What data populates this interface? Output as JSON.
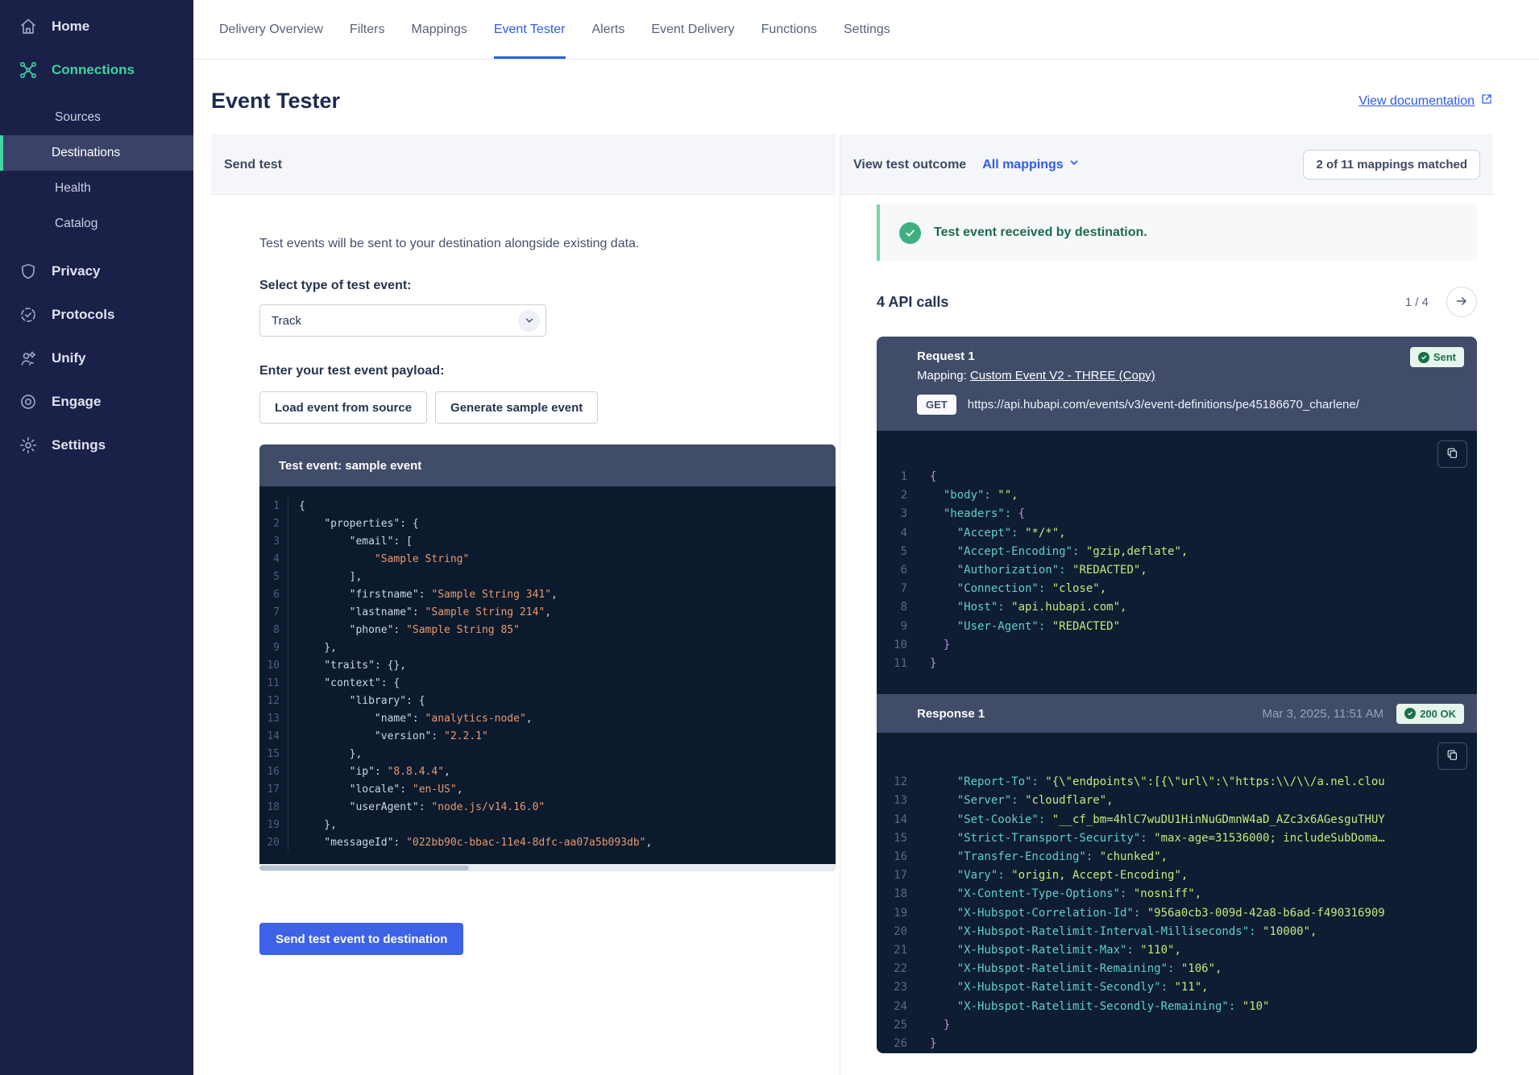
{
  "sidebar": {
    "items": [
      {
        "label": "Home",
        "icon": "home"
      },
      {
        "label": "Connections",
        "icon": "connections",
        "accent": true
      },
      {
        "label": "Sources",
        "sub": true
      },
      {
        "label": "Destinations",
        "sub": true,
        "active": true
      },
      {
        "label": "Health",
        "sub": true
      },
      {
        "label": "Catalog",
        "sub": true
      },
      {
        "label": "Privacy",
        "icon": "privacy"
      },
      {
        "label": "Protocols",
        "icon": "protocols"
      },
      {
        "label": "Unify",
        "icon": "unify"
      },
      {
        "label": "Engage",
        "icon": "engage"
      },
      {
        "label": "Settings",
        "icon": "settings"
      }
    ]
  },
  "tabs": {
    "labels": [
      "Delivery Overview",
      "Filters",
      "Mappings",
      "Event Tester",
      "Alerts",
      "Event Delivery",
      "Functions",
      "Settings"
    ],
    "active_index": 3
  },
  "page": {
    "title": "Event Tester",
    "doc_link": "View documentation"
  },
  "send_test": {
    "panel_title": "Send test",
    "description": "Test events will be sent to your destination alongside existing data.",
    "select_label": "Select type of test event:",
    "select_value": "Track",
    "payload_label": "Enter your test event payload:",
    "load_button": "Load event from source",
    "generate_button": "Generate sample event",
    "editor_title": "Test event: sample event",
    "send_button": "Send test event to destination",
    "editor_lines": [
      {
        "n": 1,
        "s": [
          [
            "t",
            "{"
          ]
        ]
      },
      {
        "n": 2,
        "s": [
          [
            "t",
            "    \"properties\": {"
          ]
        ]
      },
      {
        "n": 3,
        "s": [
          [
            "t",
            "        \"email\": ["
          ]
        ]
      },
      {
        "n": 4,
        "s": [
          [
            "t",
            "            "
          ],
          [
            "v",
            "\"Sample String\""
          ]
        ]
      },
      {
        "n": 5,
        "s": [
          [
            "t",
            "        ],"
          ]
        ]
      },
      {
        "n": 6,
        "s": [
          [
            "t",
            "        \"firstname\": "
          ],
          [
            "v",
            "\"Sample String 341\""
          ],
          [
            "t",
            ","
          ]
        ]
      },
      {
        "n": 7,
        "s": [
          [
            "t",
            "        \"lastname\": "
          ],
          [
            "v",
            "\"Sample String 214\""
          ],
          [
            "t",
            ","
          ]
        ]
      },
      {
        "n": 8,
        "s": [
          [
            "t",
            "        \"phone\": "
          ],
          [
            "v",
            "\"Sample String 85\""
          ]
        ]
      },
      {
        "n": 9,
        "s": [
          [
            "t",
            "    },"
          ]
        ]
      },
      {
        "n": 10,
        "s": [
          [
            "t",
            "    \"traits\": {},"
          ]
        ]
      },
      {
        "n": 11,
        "s": [
          [
            "t",
            "    \"context\": {"
          ]
        ]
      },
      {
        "n": 12,
        "s": [
          [
            "t",
            "        \"library\": {"
          ]
        ]
      },
      {
        "n": 13,
        "s": [
          [
            "t",
            "            \"name\": "
          ],
          [
            "v",
            "\"analytics-node\""
          ],
          [
            "t",
            ","
          ]
        ]
      },
      {
        "n": 14,
        "s": [
          [
            "t",
            "            \"version\": "
          ],
          [
            "v",
            "\"2.2.1\""
          ]
        ]
      },
      {
        "n": 15,
        "s": [
          [
            "t",
            "        },"
          ]
        ]
      },
      {
        "n": 16,
        "s": [
          [
            "t",
            "        \"ip\": "
          ],
          [
            "v",
            "\"8.8.4.4\""
          ],
          [
            "t",
            ","
          ]
        ]
      },
      {
        "n": 17,
        "s": [
          [
            "t",
            "        \"locale\": "
          ],
          [
            "v",
            "\"en-US\""
          ],
          [
            "t",
            ","
          ]
        ]
      },
      {
        "n": 18,
        "s": [
          [
            "t",
            "        \"userAgent\": "
          ],
          [
            "v",
            "\"node.js/v14.16.0\""
          ]
        ]
      },
      {
        "n": 19,
        "s": [
          [
            "t",
            "    },"
          ]
        ]
      },
      {
        "n": 20,
        "s": [
          [
            "t",
            "    \"messageId\": "
          ],
          [
            "v",
            "\"022bb90c-bbac-11e4-8dfc-aa07a5b093db\""
          ],
          [
            "t",
            ","
          ]
        ]
      }
    ]
  },
  "outcome": {
    "panel_title": "View test outcome",
    "filter": "All mappings",
    "matched_badge": "2 of 11 mappings matched",
    "success_message": "Test event received by destination.",
    "api_calls_title": "4 API calls",
    "pagination": "1 / 4",
    "request": {
      "title": "Request 1",
      "status": "Sent",
      "mapping_label": "Mapping:",
      "mapping_link": "Custom Event V2 - THREE (Copy)",
      "method": "GET",
      "url": "https://api.hubapi.com/events/v3/event-definitions/pe45186670_charlene/",
      "code_lines": [
        {
          "n": 1,
          "s": [
            [
              "p",
              "{"
            ]
          ]
        },
        {
          "n": 2,
          "s": [
            [
              "k",
              "  \"body\": "
            ],
            [
              "v",
              "\"\","
            ]
          ]
        },
        {
          "n": 3,
          "s": [
            [
              "k",
              "  \"headers\": "
            ],
            [
              "p",
              "{"
            ]
          ]
        },
        {
          "n": 4,
          "s": [
            [
              "k",
              "    \"Accept\": "
            ],
            [
              "v",
              "\"*/*\","
            ]
          ]
        },
        {
          "n": 5,
          "s": [
            [
              "k",
              "    \"Accept-Encoding\": "
            ],
            [
              "v",
              "\"gzip,deflate\","
            ]
          ]
        },
        {
          "n": 6,
          "s": [
            [
              "k",
              "    \"Authorization\": "
            ],
            [
              "v",
              "\"REDACTED\","
            ]
          ]
        },
        {
          "n": 7,
          "s": [
            [
              "k",
              "    \"Connection\": "
            ],
            [
              "v",
              "\"close\","
            ]
          ]
        },
        {
          "n": 8,
          "s": [
            [
              "k",
              "    \"Host\": "
            ],
            [
              "v",
              "\"api.hubapi.com\","
            ]
          ]
        },
        {
          "n": 9,
          "s": [
            [
              "k",
              "    \"User-Agent\": "
            ],
            [
              "v",
              "\"REDACTED\""
            ]
          ]
        },
        {
          "n": 10,
          "s": [
            [
              "p",
              "  }"
            ]
          ]
        },
        {
          "n": 11,
          "s": [
            [
              "p",
              "}"
            ]
          ]
        }
      ]
    },
    "response": {
      "title": "Response 1",
      "timestamp": "Mar 3, 2025, 11:51 AM",
      "status": "200 OK",
      "code_lines": [
        {
          "n": 12,
          "s": [
            [
              "k",
              "    \"Report-To\": "
            ],
            [
              "v",
              "\"{\\\"endpoints\\\":[{\\\"url\\\":\\\"https:\\\\/\\\\/a.nel.clou"
            ]
          ]
        },
        {
          "n": 13,
          "s": [
            [
              "k",
              "    \"Server\": "
            ],
            [
              "v",
              "\"cloudflare\","
            ]
          ]
        },
        {
          "n": 14,
          "s": [
            [
              "k",
              "    \"Set-Cookie\": "
            ],
            [
              "v",
              "\"__cf_bm=4hlC7wuDU1HinNuGDmnW4aD_AZc3x6AGesguTHUY"
            ]
          ]
        },
        {
          "n": 15,
          "s": [
            [
              "k",
              "    \"Strict-Transport-Security\": "
            ],
            [
              "v",
              "\"max-age=31536000; includeSubDoma…"
            ]
          ]
        },
        {
          "n": 16,
          "s": [
            [
              "k",
              "    \"Transfer-Encoding\": "
            ],
            [
              "v",
              "\"chunked\","
            ]
          ]
        },
        {
          "n": 17,
          "s": [
            [
              "k",
              "    \"Vary\": "
            ],
            [
              "v",
              "\"origin, Accept-Encoding\","
            ]
          ]
        },
        {
          "n": 18,
          "s": [
            [
              "k",
              "    \"X-Content-Type-Options\": "
            ],
            [
              "v",
              "\"nosniff\","
            ]
          ]
        },
        {
          "n": 19,
          "s": [
            [
              "k",
              "    \"X-Hubspot-Correlation-Id\": "
            ],
            [
              "v",
              "\"956a0cb3-009d-42a8-b6ad-f490316909"
            ]
          ]
        },
        {
          "n": 20,
          "s": [
            [
              "k",
              "    \"X-Hubspot-Ratelimit-Interval-Milliseconds\": "
            ],
            [
              "v",
              "\"10000\","
            ]
          ]
        },
        {
          "n": 21,
          "s": [
            [
              "k",
              "    \"X-Hubspot-Ratelimit-Max\": "
            ],
            [
              "v",
              "\"110\","
            ]
          ]
        },
        {
          "n": 22,
          "s": [
            [
              "k",
              "    \"X-Hubspot-Ratelimit-Remaining\": "
            ],
            [
              "v",
              "\"106\","
            ]
          ]
        },
        {
          "n": 23,
          "s": [
            [
              "k",
              "    \"X-Hubspot-Ratelimit-Secondly\": "
            ],
            [
              "v",
              "\"11\","
            ]
          ]
        },
        {
          "n": 24,
          "s": [
            [
              "k",
              "    \"X-Hubspot-Ratelimit-Secondly-Remaining\": "
            ],
            [
              "v",
              "\"10\""
            ]
          ]
        },
        {
          "n": 25,
          "s": [
            [
              "p",
              "  }"
            ]
          ]
        },
        {
          "n": 26,
          "s": [
            [
              "p",
              "}"
            ]
          ]
        }
      ]
    }
  }
}
